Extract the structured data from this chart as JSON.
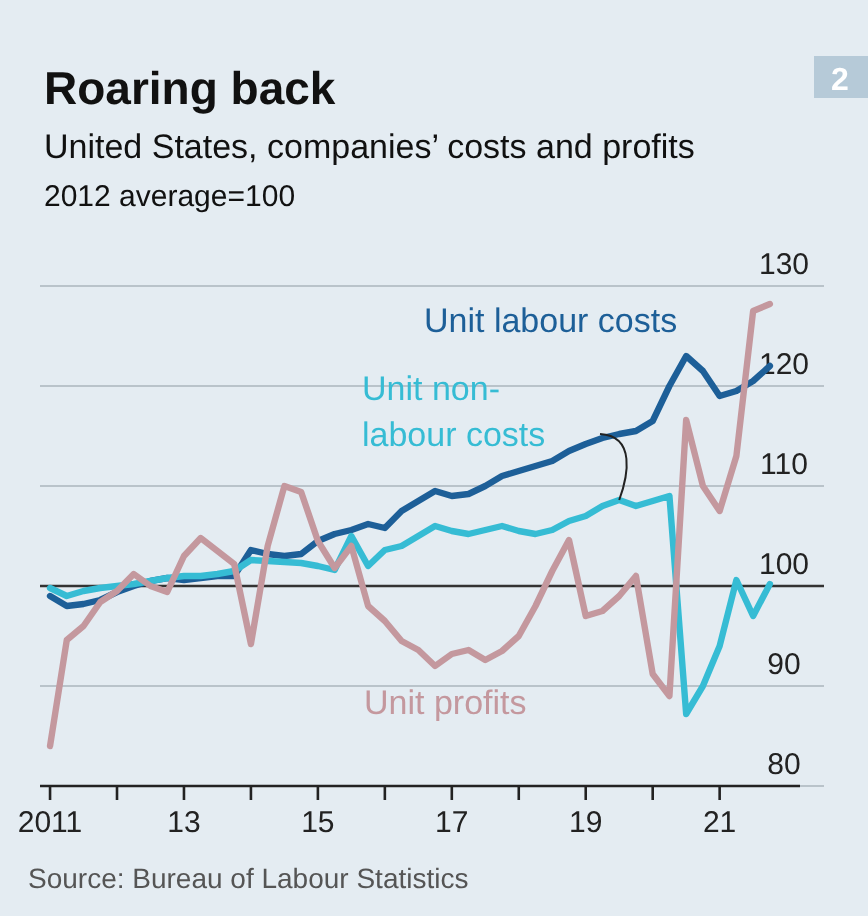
{
  "chart_data": {
    "type": "line",
    "title": "Roaring back",
    "subtitle": "United States, companies’ costs and profits",
    "ylabel": "2012 average=100",
    "x": [
      2011,
      2011.25,
      2011.5,
      2011.75,
      2012,
      2012.25,
      2012.5,
      2012.75,
      2013,
      2013.25,
      2013.5,
      2013.75,
      2014,
      2014.25,
      2014.5,
      2014.75,
      2015,
      2015.25,
      2015.5,
      2015.75,
      2016,
      2016.25,
      2016.5,
      2016.75,
      2017,
      2017.25,
      2017.5,
      2017.75,
      2018,
      2018.25,
      2018.5,
      2018.75,
      2019,
      2019.25,
      2019.5,
      2019.75,
      2020,
      2020.25,
      2020.5,
      2020.75,
      2021,
      2021.25,
      2021.5,
      2021.75
    ],
    "series": [
      {
        "name": "Unit labour costs",
        "color": "#1d5f98",
        "values": [
          99,
          98,
          98.2,
          98.6,
          99.4,
          100,
          100.5,
          100.8,
          100.6,
          100.8,
          101,
          101,
          103.6,
          103.2,
          103,
          103.2,
          104.5,
          105.2,
          105.6,
          106.2,
          105.8,
          107.5,
          108.5,
          109.5,
          109,
          109.2,
          110,
          111,
          111.5,
          112,
          112.5,
          113.5,
          114.2,
          114.8,
          115.2,
          115.5,
          116.5,
          120,
          123,
          121.5,
          119,
          119.5,
          120.5,
          122
        ]
      },
      {
        "name": "Unit non-labour costs",
        "color": "#36bcd4",
        "values": [
          99.8,
          99,
          99.5,
          99.8,
          100,
          100.2,
          100.5,
          100.8,
          101,
          101,
          101.2,
          101.5,
          102.6,
          102.5,
          102.4,
          102.3,
          102,
          101.6,
          105,
          102,
          103.6,
          104,
          105,
          106,
          105.5,
          105.2,
          105.6,
          106,
          105.5,
          105.2,
          105.6,
          106.5,
          107,
          108,
          108.6,
          108,
          108.5,
          109,
          87.2,
          90,
          94,
          100.6,
          97,
          100.2
        ]
      },
      {
        "name": "Unit profits",
        "color": "#c4989e",
        "values": [
          84,
          94.6,
          96,
          98.4,
          99.5,
          101.2,
          100,
          99.4,
          103,
          104.8,
          103.5,
          102.2,
          94.2,
          104,
          110,
          109.4,
          104.5,
          101.8,
          104,
          98,
          96.5,
          94.5,
          93.6,
          92,
          93.2,
          93.6,
          92.6,
          93.5,
          95,
          98,
          101.5,
          104.6,
          97,
          97.5,
          99,
          101,
          91.2,
          89,
          116.6,
          110,
          107.5,
          113,
          127.5,
          128.2
        ]
      }
    ],
    "xlim": [
      2010.85,
      2022.2
    ],
    "xticks": [
      {
        "value": 2011,
        "label": "2011"
      },
      {
        "value": 2012,
        "label": null
      },
      {
        "value": 2013,
        "label": "13"
      },
      {
        "value": 2014,
        "label": null
      },
      {
        "value": 2015,
        "label": "15"
      },
      {
        "value": 2016,
        "label": null
      },
      {
        "value": 2017,
        "label": "17"
      },
      {
        "value": 2018,
        "label": null
      },
      {
        "value": 2019,
        "label": "19"
      },
      {
        "value": 2020,
        "label": null
      },
      {
        "value": 2021,
        "label": "21"
      }
    ],
    "ylim": [
      80,
      130
    ],
    "yticks": [
      80,
      90,
      100,
      110,
      120,
      130
    ],
    "grid": "y",
    "ref_lines": [
      {
        "axis": "y",
        "value": 100,
        "color": "#333333"
      }
    ],
    "marker": "none",
    "line_style": "solid",
    "annotations": [
      "Source: Bureau of Labour Statistics",
      "2"
    ]
  }
}
